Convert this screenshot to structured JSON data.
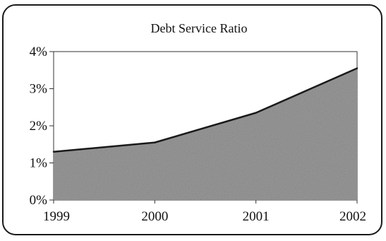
{
  "chart_data": {
    "type": "area",
    "title": "Debt Service Ratio",
    "xlabel": "",
    "ylabel": "",
    "categories": [
      "1999",
      "2000",
      "2001",
      "2002"
    ],
    "series": [
      {
        "values": [
          1.3,
          1.55,
          2.35,
          3.55
        ]
      }
    ],
    "ylim": [
      0,
      4
    ],
    "yticks": [
      0,
      1,
      2,
      3,
      4
    ],
    "ytick_labels": [
      "0%",
      "1%",
      "2%",
      "3%",
      "4%"
    ],
    "grid": false,
    "legend": "none",
    "colors": {
      "fill": "#9a9a9a",
      "line": "#1a1a1a",
      "frame": "#222222"
    }
  }
}
